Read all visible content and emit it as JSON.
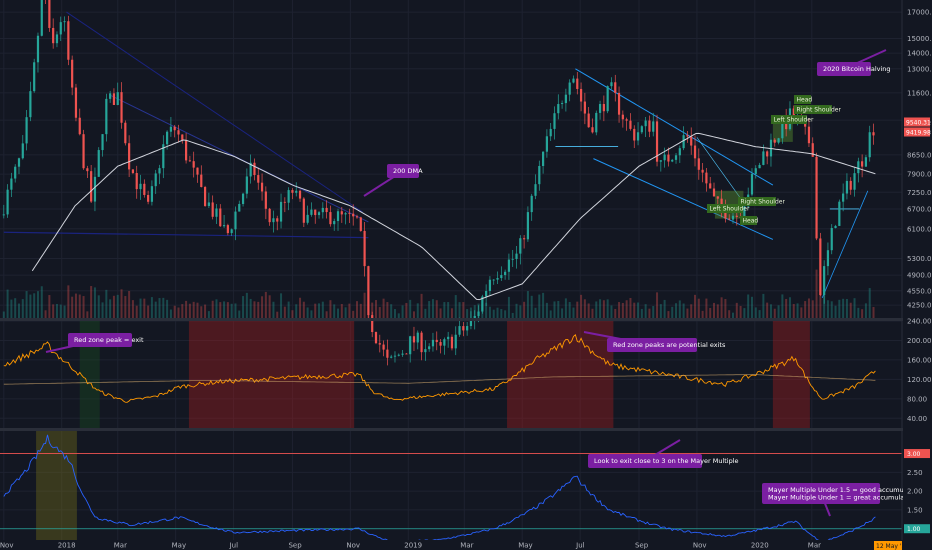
{
  "chart_data": [
    {
      "type": "line",
      "ylim": [
        4000,
        18000
      ],
      "log_scale": true,
      "y_ticks": [
        "17000.00",
        "15000.00",
        "14000.00",
        "13000.00",
        "11600.00",
        "10200.00",
        "8650.00",
        "7900.00",
        "7250.00",
        "6700.00",
        "6100.00",
        "5300.00",
        "4900.00",
        "4550.00",
        "4250.00"
      ],
      "price_tags": [
        {
          "text": "9540.31",
          "color": "#ef5350"
        },
        {
          "text": "9419.98",
          "color": "#ef5350"
        }
      ],
      "series": [
        {
          "values": [
            {
              "x": "2017-11-01",
              "y": 6500
            },
            {
              "x": "2017-11-25",
              "y": 8800
            },
            {
              "x": "2017-12-05",
              "y": 12000
            },
            {
              "x": "2017-12-17",
              "y": 19500
            },
            {
              "x": "2017-12-25",
              "y": 14000
            },
            {
              "x": "2018-01-06",
              "y": 17000
            },
            {
              "x": "2018-01-17",
              "y": 11000
            },
            {
              "x": "2018-02-06",
              "y": 6800
            },
            {
              "x": "2018-02-20",
              "y": 11000
            },
            {
              "x": "2018-03-05",
              "y": 11500
            },
            {
              "x": "2018-03-18",
              "y": 8200
            },
            {
              "x": "2018-04-06",
              "y": 6700
            },
            {
              "x": "2018-04-25",
              "y": 9500
            },
            {
              "x": "2018-05-05",
              "y": 9800
            },
            {
              "x": "2018-05-30",
              "y": 7400
            },
            {
              "x": "2018-06-28",
              "y": 5900
            },
            {
              "x": "2018-07-25",
              "y": 8200
            },
            {
              "x": "2018-08-14",
              "y": 6200
            },
            {
              "x": "2018-09-05",
              "y": 7300
            },
            {
              "x": "2018-09-20",
              "y": 6400
            },
            {
              "x": "2018-10-15",
              "y": 6500
            },
            {
              "x": "2018-11-14",
              "y": 6300
            },
            {
              "x": "2018-11-25",
              "y": 4000
            },
            {
              "x": "2018-12-15",
              "y": 3200
            },
            {
              "x": "2019-01-10",
              "y": 3600
            },
            {
              "x": "2019-02-08",
              "y": 3450
            },
            {
              "x": "2019-03-15",
              "y": 3950
            },
            {
              "x": "2019-04-02",
              "y": 4900
            },
            {
              "x": "2019-05-01",
              "y": 5400
            },
            {
              "x": "2019-05-28",
              "y": 8800
            },
            {
              "x": "2019-06-26",
              "y": 13000
            },
            {
              "x": "2019-07-15",
              "y": 9800
            },
            {
              "x": "2019-08-06",
              "y": 11800
            },
            {
              "x": "2019-08-29",
              "y": 9500
            },
            {
              "x": "2019-09-20",
              "y": 10100
            },
            {
              "x": "2019-09-26",
              "y": 8100
            },
            {
              "x": "2019-10-25",
              "y": 9500
            },
            {
              "x": "2019-11-25",
              "y": 6800
            },
            {
              "x": "2019-12-18",
              "y": 6500
            },
            {
              "x": "2020-01-14",
              "y": 8700
            },
            {
              "x": "2020-02-13",
              "y": 10500
            },
            {
              "x": "2020-03-07",
              "y": 8900
            },
            {
              "x": "2020-03-12",
              "y": 4400
            },
            {
              "x": "2020-04-01",
              "y": 6700
            },
            {
              "x": "2020-04-29",
              "y": 8700
            },
            {
              "x": "2020-05-08",
              "y": 9900
            }
          ]
        },
        {
          "name": "200 DMA",
          "values": [
            {
              "x": "2017-12-01",
              "y": 5000
            },
            {
              "x": "2018-01-15",
              "y": 6800
            },
            {
              "x": "2018-03-01",
              "y": 8200
            },
            {
              "x": "2018-05-10",
              "y": 9300
            },
            {
              "x": "2018-07-01",
              "y": 8600
            },
            {
              "x": "2018-09-01",
              "y": 7500
            },
            {
              "x": "2018-11-01",
              "y": 6800
            },
            {
              "x": "2019-01-15",
              "y": 5600
            },
            {
              "x": "2019-03-15",
              "y": 4350
            },
            {
              "x": "2019-05-01",
              "y": 4700
            },
            {
              "x": "2019-07-01",
              "y": 6400
            },
            {
              "x": "2019-09-01",
              "y": 8200
            },
            {
              "x": "2019-11-01",
              "y": 9600
            },
            {
              "x": "2020-01-01",
              "y": 9000
            },
            {
              "x": "2020-03-01",
              "y": 8700
            },
            {
              "x": "2020-05-08",
              "y": 7900
            }
          ]
        }
      ],
      "annotations": [
        "200 DMA",
        "2020 Bitcoin Halving"
      ],
      "patterns": [
        "Left Shoulder",
        "Right Shoulder",
        "Head",
        "Left Shoulder",
        "Head",
        "Right Shoulder"
      ]
    },
    {
      "type": "line",
      "ylim": [
        20,
        240
      ],
      "y_ticks": [
        "240.00",
        "200.00",
        "160.00",
        "120.00",
        "80.00",
        "40.00"
      ],
      "red_zones": [
        [
          "2018-05-15",
          "2018-11-05"
        ],
        [
          "2019-04-15",
          "2019-08-05"
        ],
        [
          "2020-01-20",
          "2020-02-28"
        ]
      ],
      "green_zones": [
        [
          "2018-01-20",
          "2018-02-10"
        ]
      ],
      "series": [
        {
          "values": [
            {
              "x": "2017-11-01",
              "y": 150
            },
            {
              "x": "2017-12-17",
              "y": 190
            },
            {
              "x": "2018-01-15",
              "y": 140
            },
            {
              "x": "2018-02-10",
              "y": 95
            },
            {
              "x": "2018-03-10",
              "y": 75
            },
            {
              "x": "2018-04-10",
              "y": 85
            },
            {
              "x": "2018-05-05",
              "y": 105
            },
            {
              "x": "2018-06-15",
              "y": 115
            },
            {
              "x": "2018-08-01",
              "y": 120
            },
            {
              "x": "2018-09-15",
              "y": 125
            },
            {
              "x": "2018-11-10",
              "y": 130
            },
            {
              "x": "2018-11-25",
              "y": 95
            },
            {
              "x": "2018-12-15",
              "y": 78
            },
            {
              "x": "2019-02-01",
              "y": 88
            },
            {
              "x": "2019-04-01",
              "y": 100
            },
            {
              "x": "2019-05-15",
              "y": 160
            },
            {
              "x": "2019-06-26",
              "y": 210
            },
            {
              "x": "2019-08-01",
              "y": 150
            },
            {
              "x": "2019-10-01",
              "y": 130
            },
            {
              "x": "2019-12-01",
              "y": 110
            },
            {
              "x": "2020-02-13",
              "y": 165
            },
            {
              "x": "2020-03-12",
              "y": 80
            },
            {
              "x": "2020-04-15",
              "y": 105
            },
            {
              "x": "2020-05-08",
              "y": 140
            }
          ]
        }
      ],
      "annotations": [
        "Red zone peak = exit",
        "Red zone peaks are potential exits"
      ]
    },
    {
      "type": "line",
      "ylim": [
        0.7,
        3.6
      ],
      "y_ticks": [
        "3.00",
        "2.50",
        "2.00",
        "1.50",
        "1.00"
      ],
      "levels": [
        {
          "value": 3.0,
          "color": "#ef5350",
          "label": "3.00"
        },
        {
          "value": 1.0,
          "color": "#26a69a",
          "label": "1.00"
        }
      ],
      "series": [
        {
          "values": [
            {
              "x": "2017-11-01",
              "y": 1.9
            },
            {
              "x": "2017-12-17",
              "y": 3.4
            },
            {
              "x": "2018-01-10",
              "y": 2.8
            },
            {
              "x": "2018-02-06",
              "y": 1.3
            },
            {
              "x": "2018-03-15",
              "y": 1.1
            },
            {
              "x": "2018-05-05",
              "y": 1.3
            },
            {
              "x": "2018-07-01",
              "y": 0.9
            },
            {
              "x": "2018-09-01",
              "y": 0.95
            },
            {
              "x": "2018-11-10",
              "y": 1.0
            },
            {
              "x": "2018-12-15",
              "y": 0.65
            },
            {
              "x": "2019-02-01",
              "y": 0.7
            },
            {
              "x": "2019-04-01",
              "y": 1.0
            },
            {
              "x": "2019-06-26",
              "y": 2.4
            },
            {
              "x": "2019-08-01",
              "y": 1.5
            },
            {
              "x": "2019-10-01",
              "y": 1.0
            },
            {
              "x": "2019-12-01",
              "y": 0.8
            },
            {
              "x": "2020-02-13",
              "y": 1.2
            },
            {
              "x": "2020-03-12",
              "y": 0.65
            },
            {
              "x": "2020-05-08",
              "y": 1.3
            }
          ]
        }
      ],
      "annotations": [
        "Look to exit close to 3 on the Mayer Multiple",
        "Mayer Multiple Under 1.5 = good accumulation",
        "Mayer Multiple Under 1 = great accumulation"
      ]
    }
  ],
  "x_axis": {
    "tick_labels": [
      "Nov",
      "2018",
      "Mar",
      "May",
      "Jul",
      "Sep",
      "Nov",
      "2019",
      "Mar",
      "May",
      "Jul",
      "Sep",
      "Nov",
      "2020",
      "Mar"
    ],
    "current_date_tag": "12 May '20"
  },
  "colors": {
    "background": "#131722",
    "price_up": "#26a69a",
    "price_down": "#ef5350",
    "dma": "#d1d4dc",
    "mayer_ratio": "#ff9800",
    "mayer_multiple": "#2962ff",
    "callout": "#7b1fa2",
    "channel": "#2196f3",
    "pattern_box": "#33691e"
  }
}
